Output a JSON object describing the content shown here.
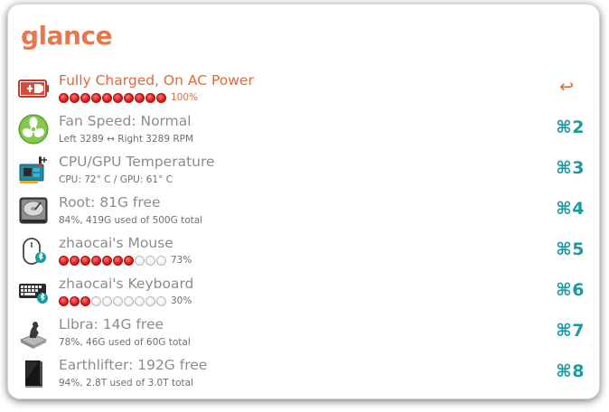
{
  "app": {
    "title": "glance"
  },
  "rows": [
    {
      "icon": "battery-ac-plug-icon",
      "title": "Fully Charged, On AC Power",
      "level_percent": 100,
      "level_label": "100%",
      "shortcut": "↩",
      "active": true
    },
    {
      "icon": "fan-icon",
      "title": "Fan Speed: Normal",
      "subtitle": "Left 3289 ↔ Right 3289 RPM",
      "shortcut": "⌘2"
    },
    {
      "icon": "circuit-board-temperature-icon",
      "title": "CPU/GPU Temperature",
      "subtitle": "CPU: 72° C / GPU: 61° C",
      "shortcut": "⌘3"
    },
    {
      "icon": "hard-drive-icon",
      "title": "Root: 81G free",
      "subtitle": "84%, 419G used of 500G total",
      "shortcut": "⌘4"
    },
    {
      "icon": "bluetooth-mouse-icon",
      "title": "zhaocai's Mouse",
      "level_percent": 73,
      "level_label": "73%",
      "shortcut": "⌘5"
    },
    {
      "icon": "bluetooth-keyboard-icon",
      "title": "zhaocai's Keyboard",
      "level_percent": 30,
      "level_label": "30%",
      "shortcut": "⌘6"
    },
    {
      "icon": "time-machine-drive-icon",
      "title": "Llbra: 14G free",
      "subtitle": "78%, 46G used of 60G total",
      "shortcut": "⌘7"
    },
    {
      "icon": "external-drive-icon",
      "title": "Earthlifter: 192G free",
      "subtitle": "94%, 2.8T used of 3.0T total",
      "shortcut": "⌘8"
    }
  ],
  "colors": {
    "accent_orange": "#e8774e",
    "shortcut_teal": "#1a9aa0",
    "dot_on": "#e61d1d",
    "dot_off": "#eeeeee"
  }
}
